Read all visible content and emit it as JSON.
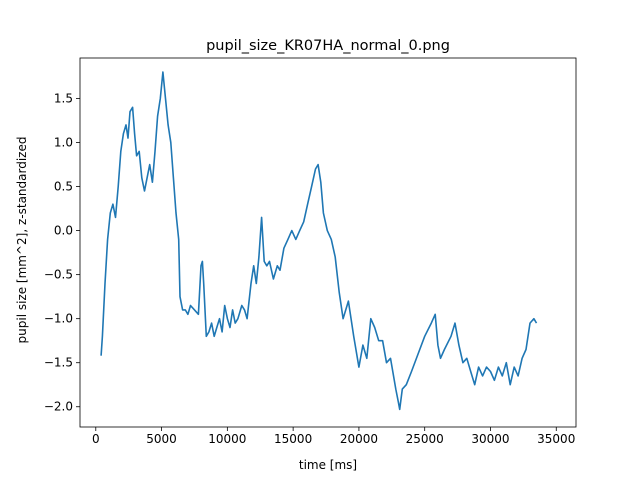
{
  "chart_data": {
    "type": "line",
    "title": "pupil_size_KR07HA_normal_0.png",
    "xlabel": "time [ms]",
    "ylabel": "pupil size [mm^2], z-standardized",
    "xlim": [
      -1200,
      36500
    ],
    "ylim": [
      -2.23,
      1.96
    ],
    "x_ticks": [
      0,
      5000,
      10000,
      15000,
      20000,
      25000,
      30000,
      35000
    ],
    "x_tick_labels": [
      "0",
      "5000",
      "10000",
      "15000",
      "20000",
      "25000",
      "30000",
      "35000"
    ],
    "y_ticks": [
      -2.0,
      -1.5,
      -1.0,
      -0.5,
      0.0,
      0.5,
      1.0,
      1.5
    ],
    "y_tick_labels": [
      "−2.0",
      "−1.5",
      "−1.0",
      "−0.5",
      "0.0",
      "0.5",
      "1.0",
      "1.5"
    ],
    "grid": false,
    "legend": false,
    "line_color": "#1f77b4",
    "series": [
      {
        "x": [
          400,
          500,
          700,
          900,
          1100,
          1300,
          1500,
          1700,
          1900,
          2100,
          2300,
          2450,
          2600,
          2800,
          2950,
          3100,
          3300,
          3500,
          3700,
          3900,
          4100,
          4300,
          4500,
          4700,
          4900,
          5100,
          5300,
          5500,
          5700,
          5900,
          6100,
          6300,
          6400,
          6600,
          6800,
          7000,
          7200,
          7500,
          7800,
          8000,
          8100,
          8200,
          8400,
          8600,
          8800,
          9000,
          9200,
          9400,
          9600,
          9800,
          10000,
          10200,
          10400,
          10600,
          10800,
          11100,
          11300,
          11500,
          11800,
          12000,
          12200,
          12400,
          12600,
          12800,
          13000,
          13200,
          13500,
          13800,
          14000,
          14300,
          14600,
          14900,
          15200,
          15500,
          15800,
          16100,
          16400,
          16700,
          16900,
          17100,
          17300,
          17600,
          17900,
          18200,
          18500,
          18800,
          19200,
          19600,
          20000,
          20300,
          20600,
          20900,
          21200,
          21500,
          21800,
          22100,
          22400,
          22800,
          23000,
          23100,
          23300,
          23600,
          24000,
          24500,
          25000,
          25500,
          25800,
          26000,
          26200,
          26500,
          27000,
          27300,
          27600,
          27900,
          28200,
          28500,
          28800,
          29100,
          29400,
          29700,
          30000,
          30300,
          30600,
          30900,
          31200,
          31500,
          31800,
          32100,
          32400,
          32700,
          33000,
          33300,
          33500
        ],
        "y": [
          -1.42,
          -1.2,
          -0.6,
          -0.1,
          0.2,
          0.3,
          0.15,
          0.5,
          0.9,
          1.1,
          1.2,
          1.05,
          1.35,
          1.4,
          1.1,
          0.85,
          0.9,
          0.6,
          0.45,
          0.6,
          0.75,
          0.55,
          0.9,
          1.3,
          1.5,
          1.8,
          1.5,
          1.2,
          1.0,
          0.6,
          0.2,
          -0.1,
          -0.75,
          -0.9,
          -0.9,
          -0.95,
          -0.85,
          -0.9,
          -0.95,
          -0.4,
          -0.35,
          -0.6,
          -1.2,
          -1.15,
          -1.05,
          -1.2,
          -1.1,
          -1.0,
          -1.15,
          -0.85,
          -1.0,
          -1.1,
          -0.9,
          -1.05,
          -1.0,
          -0.85,
          -0.9,
          -1.0,
          -0.6,
          -0.4,
          -0.6,
          -0.3,
          0.15,
          -0.35,
          -0.4,
          -0.35,
          -0.55,
          -0.4,
          -0.45,
          -0.2,
          -0.1,
          0.0,
          -0.1,
          0.0,
          0.1,
          0.3,
          0.5,
          0.7,
          0.75,
          0.55,
          0.2,
          0.0,
          -0.1,
          -0.3,
          -0.7,
          -1.0,
          -0.8,
          -1.2,
          -1.55,
          -1.3,
          -1.45,
          -1.0,
          -1.1,
          -1.25,
          -1.25,
          -1.5,
          -1.45,
          -1.8,
          -1.95,
          -2.03,
          -1.8,
          -1.75,
          -1.6,
          -1.4,
          -1.2,
          -1.05,
          -0.95,
          -1.3,
          -1.45,
          -1.35,
          -1.2,
          -1.05,
          -1.3,
          -1.5,
          -1.45,
          -1.6,
          -1.75,
          -1.55,
          -1.65,
          -1.55,
          -1.6,
          -1.7,
          -1.55,
          -1.65,
          -1.5,
          -1.75,
          -1.55,
          -1.65,
          -1.45,
          -1.35,
          -1.05,
          -1.0,
          -1.05
        ]
      }
    ]
  }
}
